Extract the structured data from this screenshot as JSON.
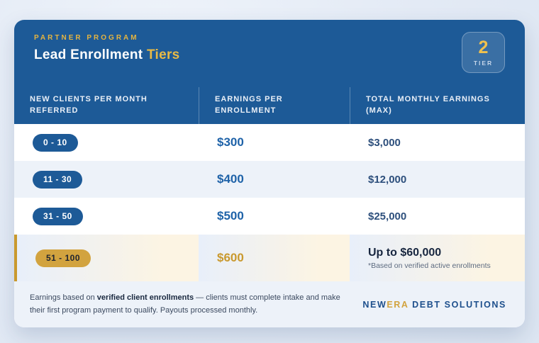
{
  "header": {
    "eyebrow": "PARTNER PROGRAM",
    "title_main": "Lead Enrollment",
    "title_accent": " Tiers",
    "badge": {
      "number": "2",
      "label": "TIER"
    }
  },
  "table": {
    "columns": [
      "NEW CLIENTS PER MONTH REFERRED",
      "EARNINGS PER ENROLLMENT",
      "TOTAL MONTHLY EARNINGS (MAX)"
    ],
    "rows": [
      {
        "range": "0 - 10",
        "per_enrollment": "$300",
        "monthly_max": "$3,000"
      },
      {
        "range": "11 - 30",
        "per_enrollment": "$400",
        "monthly_max": "$12,000"
      },
      {
        "range": "31 - 50",
        "per_enrollment": "$500",
        "monthly_max": "$25,000"
      },
      {
        "range": "51 - 100",
        "per_enrollment": "$600",
        "monthly_max": "Up to $60,000",
        "note": "*Based on verified active enrollments",
        "highlight": true
      }
    ]
  },
  "footer": {
    "note_prefix": "Earnings based on ",
    "note_bold": "verified client enrollments",
    "note_rest": " — clients must complete intake and make their first program payment to qualify. Payouts processed monthly.",
    "brand_prefix": "NEW",
    "brand_accent": "ERA",
    "brand_rest": " DEBT SOLUTIONS"
  },
  "colors": {
    "header_blue": "#1d5a97",
    "accent_gold": "#e5b440",
    "deep_gold": "#c9992e",
    "pill_gold": "#d2a33f",
    "value_blue": "#1e62a8",
    "value_navy": "#2d4f7c",
    "row_alt": "#edf2f9",
    "page_bg": "#e3eaf5"
  },
  "chart_data": {
    "type": "table",
    "title": "Lead Enrollment Tiers",
    "columns": [
      "New clients per month referred",
      "Earnings per enrollment ($)",
      "Total monthly earnings max ($)"
    ],
    "tiers": [
      {
        "clients_min": 0,
        "clients_max": 10,
        "earnings_per_enrollment": 300,
        "monthly_max": 3000
      },
      {
        "clients_min": 11,
        "clients_max": 30,
        "earnings_per_enrollment": 400,
        "monthly_max": 12000
      },
      {
        "clients_min": 31,
        "clients_max": 50,
        "earnings_per_enrollment": 500,
        "monthly_max": 25000
      },
      {
        "clients_min": 51,
        "clients_max": 100,
        "earnings_per_enrollment": 600,
        "monthly_max": 60000,
        "note": "Based on verified active enrollments"
      }
    ]
  }
}
